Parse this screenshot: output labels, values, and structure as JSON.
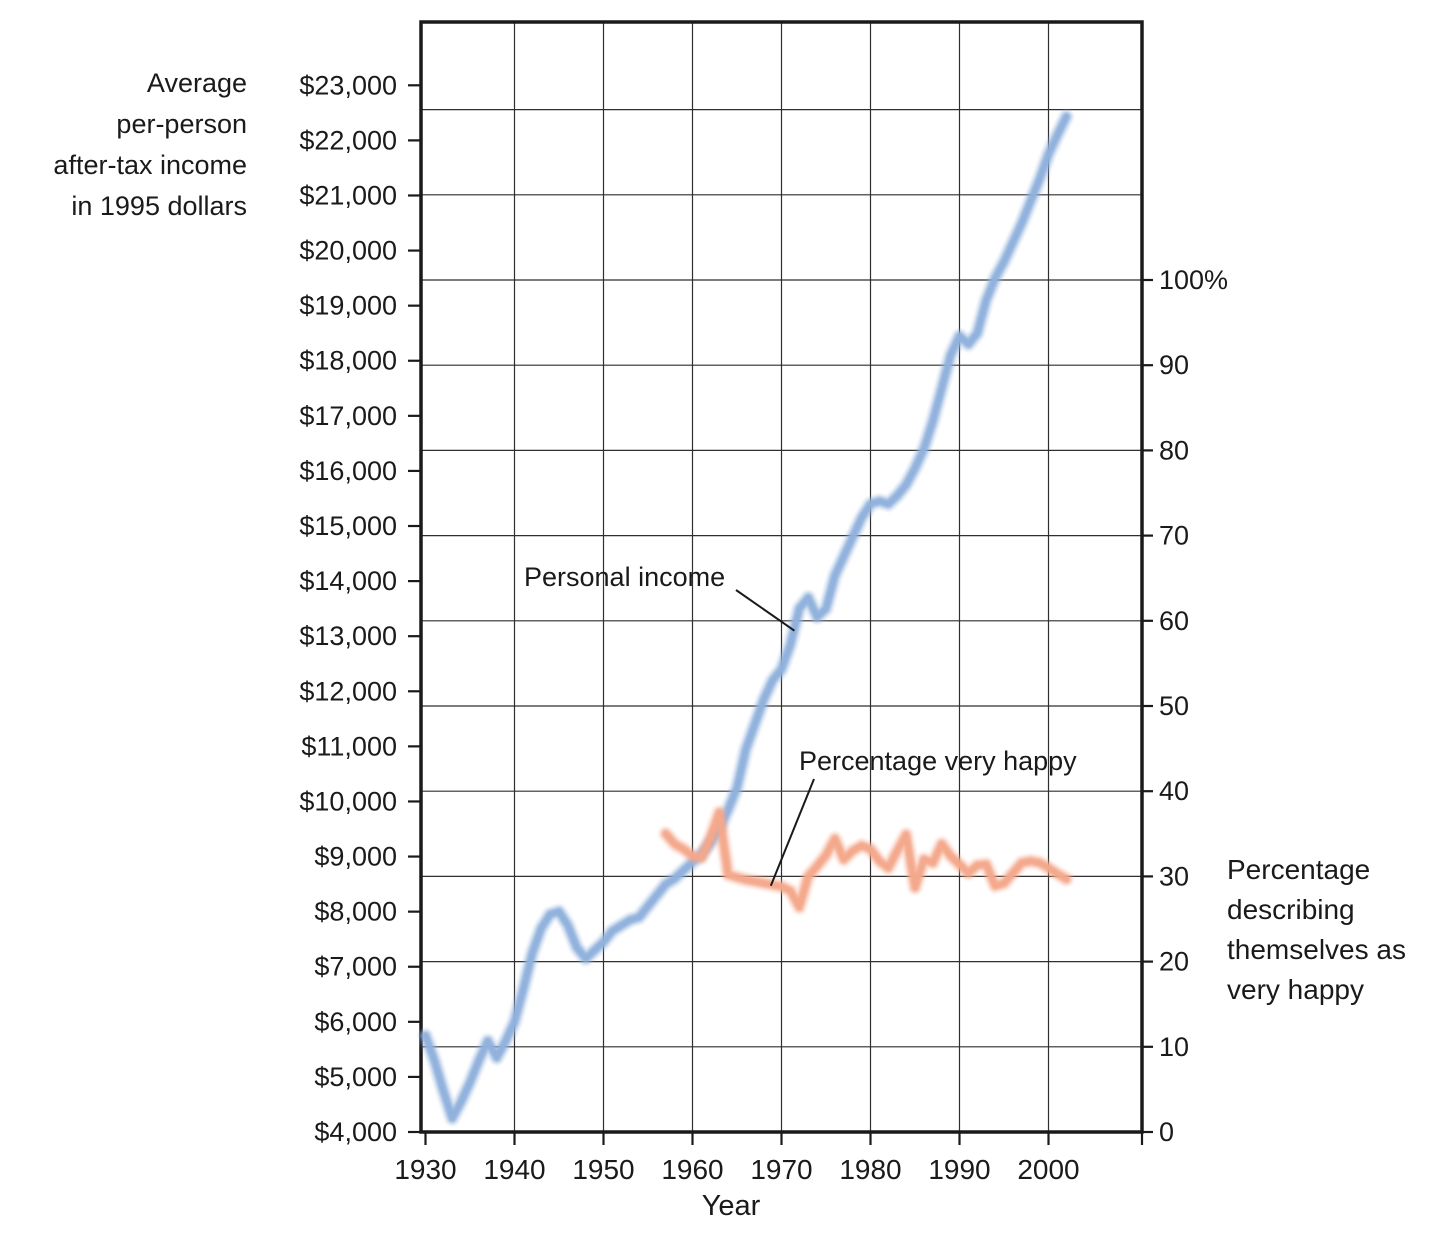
{
  "figure": {
    "x_axis_title": "Year",
    "left_axis_title_lines": [
      "Average",
      "per-person",
      "after-tax income",
      "in 1995 dollars"
    ],
    "right_axis_title_lines": [
      "Percentage",
      "describing",
      "themselves as",
      "very happy"
    ]
  },
  "annotations": {
    "personal_income": {
      "label": "Personal income",
      "target_year": 1971.45,
      "target_value": 13100
    },
    "very_happy": {
      "label": "Percentage very happy",
      "target_year": 1968.8,
      "target_pct": 28.9
    }
  },
  "colors": {
    "income_line": "#8FB1DC",
    "happy_line": "#F4A88B",
    "grid": "#2f2f2f",
    "frame": "#1a1a1a",
    "text": "#1a1a1a",
    "background": "#ffffff"
  },
  "chart_data": {
    "type": "line",
    "title": "",
    "xlabel": "Year",
    "x_range": [
      1929.5,
      2010.5
    ],
    "x_tick_years": [
      1930,
      1940,
      1950,
      1960,
      1970,
      1980,
      1990,
      2000
    ],
    "x_tick_labels": [
      "1930",
      "1940",
      "1950",
      "1960",
      "1970",
      "1980",
      "1990",
      "2000"
    ],
    "grid": {
      "horizontal_step_pct": 10,
      "vertical_step_years": 10
    },
    "left_axis": {
      "label": "Average per-person after-tax income in 1995 dollars",
      "range": [
        4000,
        23000
      ],
      "tick_step": 1000,
      "tick_labels": [
        "$4,000",
        "$5,000",
        "$6,000",
        "$7,000",
        "$8,000",
        "$9,000",
        "$10,000",
        "$11,000",
        "$12,000",
        "$13,000",
        "$14,000",
        "$15,000",
        "$16,000",
        "$17,000",
        "$18,000",
        "$19,000",
        "$20,000",
        "$21,000",
        "$22,000",
        "$23,000"
      ]
    },
    "right_axis": {
      "label": "Percentage describing themselves as very happy",
      "range": [
        0,
        100
      ],
      "tick_step": 10,
      "tick_labels": [
        "0",
        "10",
        "20",
        "30",
        "40",
        "50",
        "60",
        "70",
        "80",
        "90",
        "100%"
      ]
    },
    "series": [
      {
        "name": "Personal income",
        "axis": "left",
        "color": "#8FB1DC",
        "x": [
          1930,
          1931,
          1932,
          1933,
          1934,
          1935,
          1936,
          1937,
          1938,
          1939,
          1940,
          1941,
          1942,
          1943,
          1944,
          1945,
          1946,
          1947,
          1948,
          1949,
          1950,
          1951,
          1952,
          1953,
          1954,
          1955,
          1956,
          1957,
          1958,
          1959,
          1960,
          1961,
          1962,
          1963,
          1964,
          1965,
          1966,
          1967,
          1968,
          1969,
          1970,
          1971,
          1972,
          1973,
          1974,
          1975,
          1976,
          1977,
          1978,
          1979,
          1980,
          1981,
          1982,
          1983,
          1984,
          1985,
          1986,
          1987,
          1988,
          1989,
          1990,
          1991,
          1992,
          1993,
          1994,
          1995,
          1996,
          1997,
          1998,
          1999,
          2000,
          2001,
          2002
        ],
        "y": [
          5750,
          5300,
          4750,
          4250,
          4550,
          4900,
          5300,
          5650,
          5350,
          5650,
          6000,
          6600,
          7250,
          7700,
          7950,
          8000,
          7750,
          7350,
          7150,
          7300,
          7450,
          7650,
          7750,
          7850,
          7900,
          8100,
          8300,
          8500,
          8600,
          8750,
          8900,
          9050,
          9250,
          9500,
          9850,
          10250,
          10950,
          11400,
          11850,
          12200,
          12400,
          12850,
          13500,
          13700,
          13350,
          13500,
          14100,
          14450,
          14800,
          15150,
          15400,
          15450,
          15400,
          15550,
          15750,
          16050,
          16400,
          16900,
          17500,
          18100,
          18450,
          18300,
          18500,
          19100,
          19500,
          19800,
          20150,
          20500,
          20900,
          21300,
          21750,
          22100,
          22430
        ]
      },
      {
        "name": "Percentage very happy",
        "axis": "right",
        "color": "#F4A88B",
        "x": [
          1957,
          1958,
          1959,
          1960,
          1961,
          1962,
          1963,
          1964,
          1965,
          1966,
          1967,
          1968,
          1969,
          1970,
          1971,
          1972,
          1973,
          1974,
          1975,
          1976,
          1977,
          1978,
          1979,
          1980,
          1981,
          1982,
          1983,
          1984,
          1985,
          1986,
          1987,
          1988,
          1989,
          1990,
          1991,
          1992,
          1993,
          1994,
          1995,
          1996,
          1997,
          1998,
          1999,
          2000,
          2001,
          2002
        ],
        "y": [
          35.0,
          33.8,
          33.2,
          32.4,
          32.2,
          34.5,
          37.5,
          30.2,
          29.9,
          29.6,
          29.4,
          29.2,
          29.0,
          28.8,
          28.3,
          26.4,
          30.0,
          31.2,
          32.5,
          34.4,
          32.0,
          33.0,
          33.6,
          33.2,
          31.8,
          31.0,
          33.0,
          34.9,
          28.7,
          32.0,
          31.6,
          33.8,
          32.4,
          31.4,
          30.4,
          31.3,
          31.4,
          28.9,
          29.2,
          30.4,
          31.6,
          31.8,
          31.6,
          31.0,
          30.3,
          29.7
        ]
      }
    ]
  }
}
